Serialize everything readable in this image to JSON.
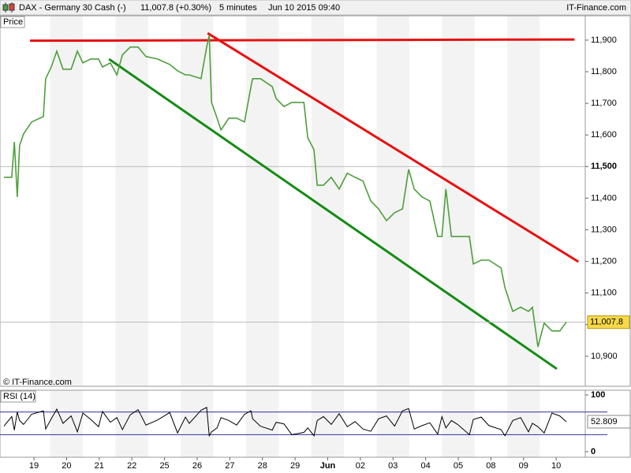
{
  "header": {
    "title": "DAX - Germany 30 Cash (-)",
    "quote": "11,007.8 (+0.30%)",
    "interval": "5 minutes",
    "date": "Jun 10 2015 09:40",
    "site": "IT-Finance.com"
  },
  "chart_data": [
    {
      "type": "line",
      "title": "Price",
      "watermark": "© IT-Finance.com",
      "x": [
        -0.92,
        -0.68,
        -0.6,
        -0.51,
        -0.44,
        -0.32,
        -0.07,
        0.29,
        0.36,
        0.53,
        0.7,
        0.89,
        1.14,
        1.33,
        1.5,
        1.74,
        1.98,
        2.1,
        2.34,
        2.54,
        2.71,
        2.95,
        3.19,
        3.43,
        3.79,
        4.16,
        4.4,
        4.64,
        4.76,
        5.12,
        5.29,
        5.37,
        5.44,
        5.61,
        5.73,
        5.97,
        6.21,
        6.45,
        6.65,
        6.7,
        6.94,
        7.3,
        7.42,
        7.66,
        7.9,
        8.27,
        8.39,
        8.58,
        8.68,
        8.87,
        9.11,
        9.35,
        9.6,
        9.84,
        10.08,
        10.32,
        10.56,
        10.8,
        11.05,
        11.29,
        11.48,
        11.65,
        11.89,
        12.13,
        12.37,
        12.5,
        12.62,
        12.79,
        12.98,
        13.34,
        13.46,
        13.7,
        13.94,
        14.31,
        14.43,
        14.67,
        14.91,
        15.15,
        15.27,
        15.44,
        15.63,
        15.87,
        16.11,
        16.31
      ],
      "values": [
        11466,
        11466,
        11578,
        11404,
        11566,
        11603,
        11641,
        11658,
        11778,
        11815,
        11865,
        11808,
        11808,
        11865,
        11828,
        11840,
        11840,
        11815,
        11828,
        11790,
        11853,
        11878,
        11878,
        11848,
        11840,
        11823,
        11803,
        11790,
        11790,
        11778,
        11878,
        11915,
        11703,
        11653,
        11616,
        11653,
        11653,
        11641,
        11753,
        11778,
        11778,
        11753,
        11715,
        11690,
        11703,
        11703,
        11591,
        11553,
        11441,
        11441,
        11466,
        11429,
        11479,
        11466,
        11454,
        11391,
        11366,
        11329,
        11354,
        11366,
        11491,
        11429,
        11404,
        11391,
        11279,
        11279,
        11429,
        11279,
        11279,
        11279,
        11192,
        11204,
        11204,
        11179,
        11117,
        11042,
        11055,
        11042,
        11055,
        10930,
        11005,
        10980,
        10980,
        11007.8
      ],
      "color": "#4e9e3c",
      "price_marker": {
        "value": 11007.8,
        "label": "11,007.8"
      },
      "trendlines": [
        {
          "color": "#e81010",
          "x": [
            -0.12,
            16.56
          ],
          "values": [
            11898,
            11902
          ]
        },
        {
          "color": "#e81010",
          "x": [
            5.32,
            16.68
          ],
          "values": [
            11922,
            11199
          ]
        },
        {
          "color": "#148c14",
          "x": [
            2.3,
            16.02
          ],
          "values": [
            11840,
            10860
          ]
        }
      ],
      "xlim": [
        -1.04,
        16.89
      ],
      "ylim": [
        10805,
        11977
      ],
      "yticks": [
        {
          "value": 10900,
          "label": "10,900"
        },
        {
          "value": 11000,
          "label": "11,000"
        },
        {
          "value": 11100,
          "label": "11,100"
        },
        {
          "value": 11200,
          "label": "11,200"
        },
        {
          "value": 11300,
          "label": "11,300"
        },
        {
          "value": 11400,
          "label": "11,400"
        },
        {
          "value": 11500,
          "label": "11,500",
          "bold": true
        },
        {
          "value": 11600,
          "label": "11,600"
        },
        {
          "value": 11700,
          "label": "11,700"
        },
        {
          "value": 11800,
          "label": "11,800"
        },
        {
          "value": 11900,
          "label": "11,900"
        }
      ]
    },
    {
      "type": "line",
      "title": "RSI (14)",
      "x": [
        -0.92,
        -0.68,
        -0.6,
        -0.51,
        -0.44,
        -0.32,
        -0.07,
        0.29,
        0.36,
        0.53,
        0.7,
        0.89,
        1.14,
        1.33,
        1.5,
        1.74,
        1.98,
        2.1,
        2.34,
        2.54,
        2.71,
        2.95,
        3.19,
        3.43,
        3.79,
        4.16,
        4.4,
        4.64,
        4.76,
        5.12,
        5.29,
        5.37,
        5.44,
        5.61,
        5.73,
        5.97,
        6.21,
        6.45,
        6.65,
        6.7,
        6.94,
        7.3,
        7.42,
        7.66,
        7.9,
        8.27,
        8.39,
        8.58,
        8.68,
        8.87,
        9.11,
        9.35,
        9.6,
        9.84,
        10.08,
        10.32,
        10.56,
        10.8,
        11.05,
        11.29,
        11.48,
        11.65,
        11.89,
        12.13,
        12.37,
        12.5,
        12.62,
        12.79,
        12.98,
        13.34,
        13.46,
        13.7,
        13.94,
        14.31,
        14.43,
        14.67,
        14.91,
        15.15,
        15.27,
        15.44,
        15.63,
        15.87,
        16.11,
        16.31
      ],
      "values": [
        45,
        62,
        38,
        70,
        55,
        48,
        66,
        72,
        40,
        58,
        75,
        50,
        63,
        35,
        68,
        57,
        44,
        71,
        52,
        60,
        39,
        65,
        74,
        47,
        56,
        69,
        33,
        61,
        50,
        73,
        78,
        28,
        35,
        42,
        60,
        55,
        47,
        66,
        72,
        58,
        45,
        38,
        52,
        49,
        30,
        34,
        42,
        28,
        55,
        62,
        48,
        67,
        44,
        53,
        40,
        36,
        58,
        63,
        45,
        72,
        76,
        40,
        46,
        51,
        31,
        62,
        42,
        55,
        48,
        30,
        57,
        61,
        46,
        39,
        28,
        55,
        60,
        35,
        50,
        44,
        33,
        68,
        63,
        52.809
      ],
      "color": "#000000",
      "levels": [
        30,
        70
      ],
      "last_value": 52.809,
      "xlim": [
        -1.04,
        16.89
      ],
      "ylim": [
        -9.7,
        108.3
      ],
      "yticks": [
        0,
        100
      ],
      "xticks": [
        {
          "value": 0,
          "label": "19"
        },
        {
          "value": 1,
          "label": "20"
        },
        {
          "value": 2,
          "label": "21"
        },
        {
          "value": 3,
          "label": "22"
        },
        {
          "value": 4,
          "label": "25"
        },
        {
          "value": 5,
          "label": "26"
        },
        {
          "value": 6,
          "label": "27"
        },
        {
          "value": 7,
          "label": "28"
        },
        {
          "value": 8,
          "label": "29"
        },
        {
          "value": 9,
          "label": "Jun",
          "bold": true
        },
        {
          "value": 10,
          "label": "02"
        },
        {
          "value": 11,
          "label": "03"
        },
        {
          "value": 12,
          "label": "04"
        },
        {
          "value": 13,
          "label": "05"
        },
        {
          "value": 14,
          "label": "08"
        },
        {
          "value": 15,
          "label": "09"
        },
        {
          "value": 16,
          "label": "10"
        }
      ]
    }
  ]
}
